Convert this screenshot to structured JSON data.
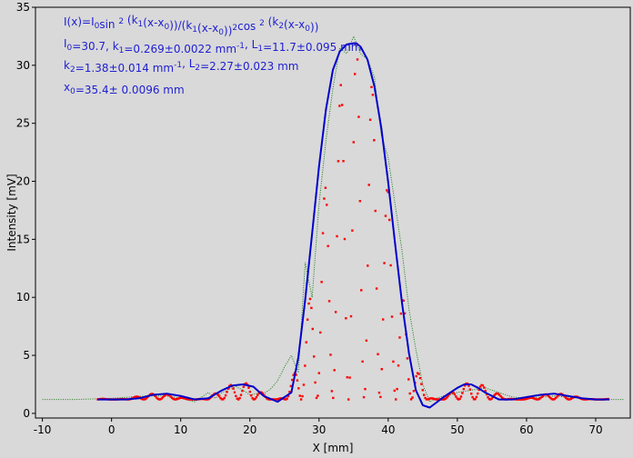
{
  "chart_data": {
    "type": "scatter",
    "title": "",
    "xlabel": "X [mm]",
    "ylabel": "Intensity [mV]",
    "xlim": [
      -11,
      75
    ],
    "ylim": [
      -0.4,
      35
    ],
    "xticks": [
      -10,
      0,
      10,
      20,
      30,
      40,
      50,
      60,
      70
    ],
    "yticks": [
      0,
      5,
      10,
      15,
      20,
      25,
      30,
      35
    ],
    "grid": false,
    "annotation": {
      "line1": "I(x)=I0sin 2 (k1(x-x0))/(k1(x-x0))2cos 2 (k2(x-x0))",
      "line2": "I0=30.7,  k1=0.269±0.0022 mm-1,   L1=11.7±0.095 mm",
      "line3": "k2=1.38±0.014 mm-1,   L2=2.27±0.023 mm",
      "line4": "x0=35.4±  0.0096 mm"
    },
    "model": {
      "I0": 30.7,
      "k1": 0.269,
      "k2": 1.38,
      "x0": 35.4,
      "offset": 1.2,
      "x_range": [
        -2,
        72
      ]
    },
    "series": [
      {
        "role": "fit",
        "color": "#0000cc",
        "x": [
          -2,
          2,
          4,
          6,
          8,
          10,
          12,
          14,
          16,
          17.5,
          19,
          20.5,
          22,
          24,
          26,
          27,
          28,
          29,
          30,
          31,
          32,
          33,
          34,
          35,
          35.4,
          36,
          37,
          38,
          39,
          40,
          41,
          42,
          43,
          44,
          45,
          46,
          48,
          50,
          51,
          52,
          53,
          54,
          56,
          58,
          60,
          62,
          64,
          66,
          68,
          70,
          72
        ],
        "y": [
          1.2,
          1.2,
          1.3,
          1.6,
          1.7,
          1.5,
          1.2,
          1.3,
          2.0,
          2.4,
          2.5,
          2.3,
          1.5,
          1.0,
          1.8,
          4.8,
          9.8,
          15.5,
          21.3,
          26.2,
          29.6,
          31.2,
          31.8,
          31.9,
          31.9,
          31.6,
          30.5,
          28.2,
          24.6,
          19.9,
          14.6,
          9.5,
          5.2,
          2.0,
          0.7,
          0.5,
          1.4,
          2.2,
          2.5,
          2.5,
          2.2,
          1.8,
          1.2,
          1.2,
          1.4,
          1.6,
          1.7,
          1.5,
          1.3,
          1.2,
          1.2
        ]
      },
      {
        "role": "measured",
        "color": "#1a7a1a",
        "x": [
          -10,
          -5,
          0,
          5,
          8,
          10,
          12,
          13,
          14,
          15,
          16,
          17,
          18,
          19,
          20,
          21,
          22,
          23,
          24,
          25,
          26,
          27,
          28,
          29,
          30,
          31,
          32,
          33,
          34,
          35,
          36,
          37,
          38,
          39,
          40,
          41,
          42,
          43,
          44,
          45,
          46,
          47,
          48,
          49,
          50,
          52,
          54,
          56,
          58,
          60,
          62,
          64,
          66,
          68,
          70,
          72,
          74
        ],
        "y": [
          1.2,
          1.2,
          1.3,
          1.5,
          1.5,
          1.3,
          1.0,
          1.4,
          1.8,
          1.3,
          1.8,
          2.1,
          2.3,
          2.0,
          1.6,
          1.7,
          1.7,
          2.1,
          2.8,
          4.0,
          5.0,
          3.5,
          13.0,
          10.0,
          18.0,
          23.5,
          28.0,
          31.5,
          31.0,
          32.5,
          31.0,
          30.5,
          29.0,
          24.0,
          22.0,
          18.0,
          14.0,
          9.0,
          5.5,
          2.5,
          1.0,
          1.3,
          1.5,
          1.6,
          1.8,
          2.0,
          2.2,
          1.8,
          1.4,
          1.3,
          1.4,
          1.5,
          1.4,
          1.3,
          1.2,
          1.2,
          1.2
        ]
      },
      {
        "role": "model-points",
        "color": "#ff0000",
        "x_range": [
          -2,
          72
        ],
        "step": 0.185
      }
    ]
  }
}
